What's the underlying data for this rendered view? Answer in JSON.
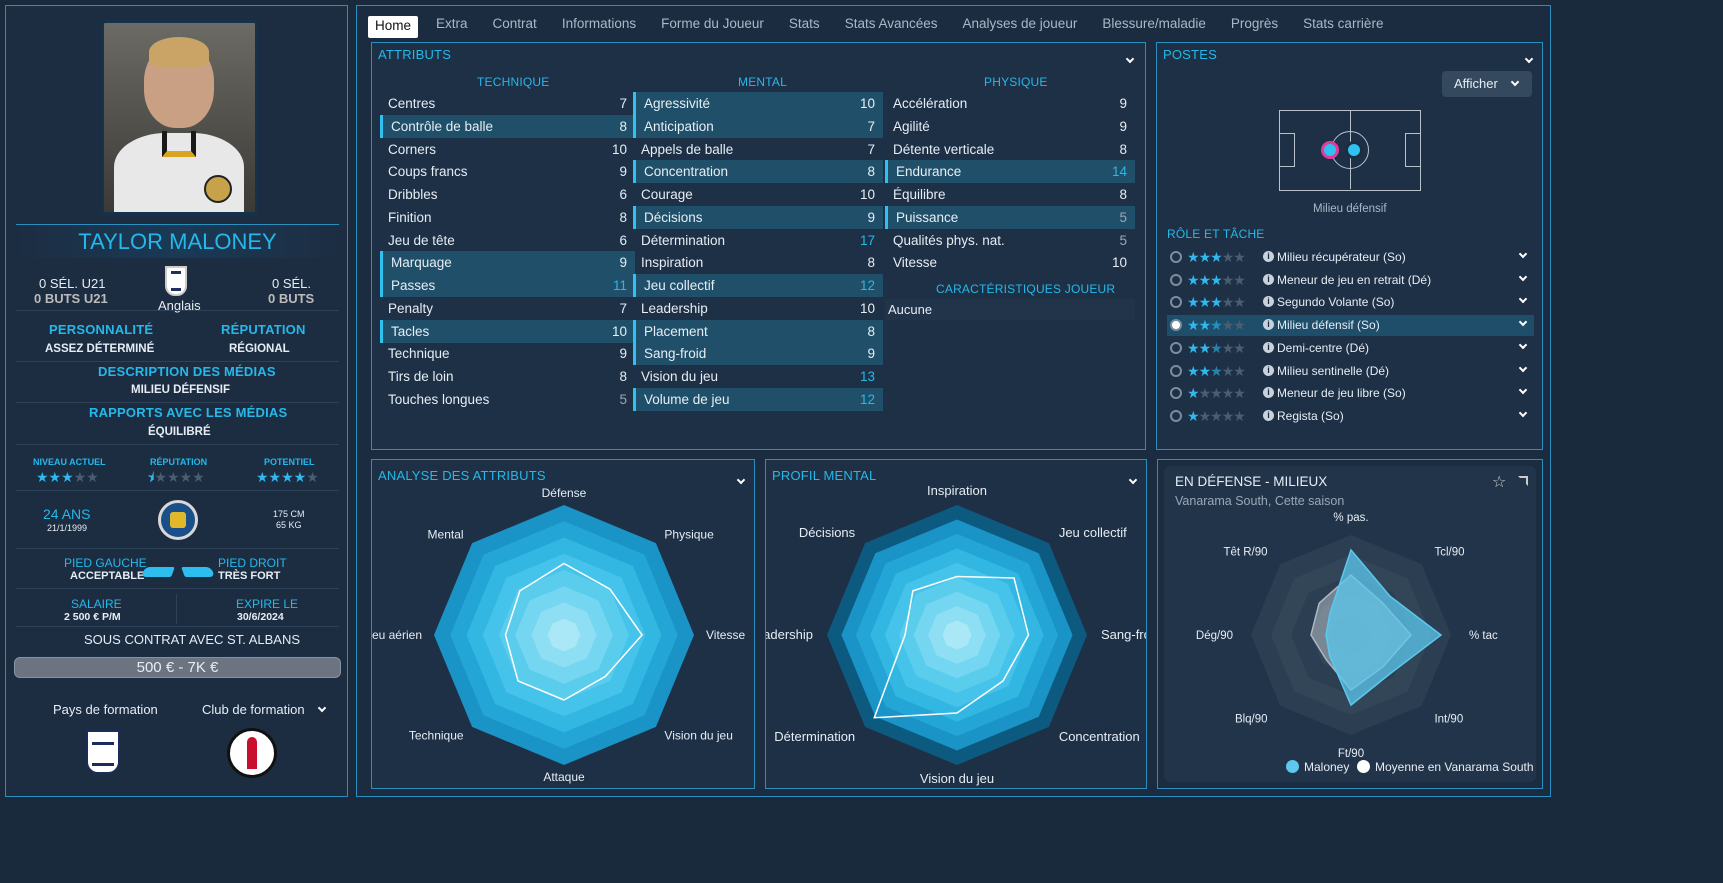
{
  "player": {
    "name": "TAYLOR MALONEY",
    "nationality": "Anglais",
    "u21_caps": "0 SÉL. U21",
    "u21_goals": "0 BUTS U21",
    "caps": "0 SÉL.",
    "goals": "0 BUTS",
    "personality_label": "PERSONNALITÉ",
    "personality": "ASSEZ DÉTERMINÉ",
    "reputation_label": "RÉPUTATION",
    "reputation": "RÉGIONAL",
    "media_desc_label": "DESCRIPTION DES MÉDIAS",
    "media_desc": "MILIEU DÉFENSIF",
    "media_rel_label": "RAPPORTS AVEC LES MÉDIAS",
    "media_rel": "ÉQUILIBRÉ",
    "current_level_label": "NIVEAU ACTUEL",
    "current_level_stars": 3,
    "rep_label": "RÉPUTATION",
    "rep_stars": 0.5,
    "potential_label": "POTENTIEL",
    "potential_stars": 4,
    "age": "24 ANS",
    "dob": "21/1/1999",
    "height": "175 CM",
    "weight": "65 KG",
    "left_foot_label": "PIED GAUCHE",
    "left_foot": "ACCEPTABLE",
    "right_foot_label": "PIED DROIT",
    "right_foot": "TRÈS FORT",
    "salary_label": "SALAIRE",
    "salary": "2 500 € P/M",
    "expires_label": "EXPIRE LE",
    "expires": "30/6/2024",
    "contract": "SOUS CONTRAT AVEC ST. ALBANS",
    "value": "500 € - 7K €",
    "training_country_label": "Pays de formation",
    "training_club_label": "Club de formation"
  },
  "tabs": [
    "Home",
    "Extra",
    "Contrat",
    "Informations",
    "Forme du Joueur",
    "Stats",
    "Stats Avancées",
    "Analyses de joueur",
    "Blessure/maladie",
    "Progrès",
    "Stats carrière"
  ],
  "attributes": {
    "title": "ATTRIBUTS",
    "technique_label": "TECHNIQUE",
    "mental_label": "MENTAL",
    "physique_label": "PHYSIQUE",
    "char_label": "CARACTÉRISTIQUES JOUEUR",
    "char_value": "Aucune",
    "technique": [
      [
        "Centres",
        "7",
        0
      ],
      [
        "Contrôle de balle",
        "8",
        1
      ],
      [
        "Corners",
        "10",
        0
      ],
      [
        "Coups francs",
        "9",
        0
      ],
      [
        "Dribbles",
        "6",
        0
      ],
      [
        "Finition",
        "8",
        0
      ],
      [
        "Jeu de tête",
        "6",
        0
      ],
      [
        "Marquage",
        "9",
        1
      ],
      [
        "Passes",
        "11",
        1
      ],
      [
        "Penalty",
        "7",
        0
      ],
      [
        "Tacles",
        "10",
        1
      ],
      [
        "Technique",
        "9",
        0
      ],
      [
        "Tirs de loin",
        "8",
        0
      ],
      [
        "Touches longues",
        "5",
        0
      ]
    ],
    "mental": [
      [
        "Agressivité",
        "10",
        1
      ],
      [
        "Anticipation",
        "7",
        1
      ],
      [
        "Appels de balle",
        "7",
        0
      ],
      [
        "Concentration",
        "8",
        1
      ],
      [
        "Courage",
        "10",
        0
      ],
      [
        "Décisions",
        "9",
        1
      ],
      [
        "Détermination",
        "17",
        0
      ],
      [
        "Inspiration",
        "8",
        0
      ],
      [
        "Jeu collectif",
        "12",
        1
      ],
      [
        "Leadership",
        "10",
        0
      ],
      [
        "Placement",
        "8",
        1
      ],
      [
        "Sang-froid",
        "9",
        1
      ],
      [
        "Vision du jeu",
        "13",
        0
      ],
      [
        "Volume de jeu",
        "12",
        1
      ]
    ],
    "physique": [
      [
        "Accélération",
        "9",
        0
      ],
      [
        "Agilité",
        "9",
        0
      ],
      [
        "Détente verticale",
        "8",
        0
      ],
      [
        "Endurance",
        "14",
        1
      ],
      [
        "Équilibre",
        "8",
        0
      ],
      [
        "Puissance",
        "5",
        1
      ],
      [
        "Qualités phys. nat.",
        "5",
        0
      ],
      [
        "Vitesse",
        "10",
        0
      ]
    ]
  },
  "positions": {
    "title": "POSTES",
    "show_button": "Afficher",
    "position_label": "Milieu défensif",
    "role_label": "RÔLE ET TÂCHE",
    "roles": [
      [
        "Milieu récupérateur (So)",
        3
      ],
      [
        "Meneur de jeu en retrait (Dé)",
        3
      ],
      [
        "Segundo Volante (So)",
        3
      ],
      [
        "Milieu défensif (So)",
        2.5
      ],
      [
        "Demi-centre (Dé)",
        2.5
      ],
      [
        "Milieu sentinelle (Dé)",
        2.5
      ],
      [
        "Meneur de jeu libre (So)",
        1
      ],
      [
        "Regista (So)",
        1
      ]
    ]
  },
  "attr_analysis": {
    "title": "ANALYSE DES ATTRIBUTS",
    "axes": [
      "Défense",
      "Physique",
      "Vitesse",
      "Vision du jeu",
      "Attaque",
      "Technique",
      "Jeu aérien",
      "Mental"
    ],
    "values": [
      0.55,
      0.5,
      0.6,
      0.45,
      0.5,
      0.5,
      0.45,
      0.48
    ]
  },
  "mental_profile": {
    "title": "PROFIL MENTAL",
    "axes": [
      "Inspiration",
      "Jeu collectif",
      "Sang-froid",
      "Concentration",
      "Vision du jeu",
      "Détermination",
      "Leadership",
      "Décisions"
    ],
    "values": [
      0.45,
      0.62,
      0.55,
      0.5,
      0.6,
      0.9,
      0.4,
      0.48
    ]
  },
  "defense": {
    "title": "EN DÉFENSE - MILIEUX",
    "subtitle": "Vanarama South, Cette saison",
    "axes": [
      "% pas.",
      "Tcl/90",
      "% tac",
      "Int/90",
      "Ft/90",
      "Blq/90",
      "Dég/90",
      "Têt R/90"
    ],
    "player": [
      0.85,
      0.55,
      0.9,
      0.55,
      0.7,
      0.3,
      0.25,
      0.3
    ],
    "avg": [
      0.6,
      0.45,
      0.6,
      0.45,
      0.55,
      0.35,
      0.4,
      0.45
    ],
    "legend_player": "Maloney",
    "legend_avg": "Moyenne en Vanarama South",
    "player_color": "#5cc8ee",
    "avg_color": "#ffffff"
  }
}
